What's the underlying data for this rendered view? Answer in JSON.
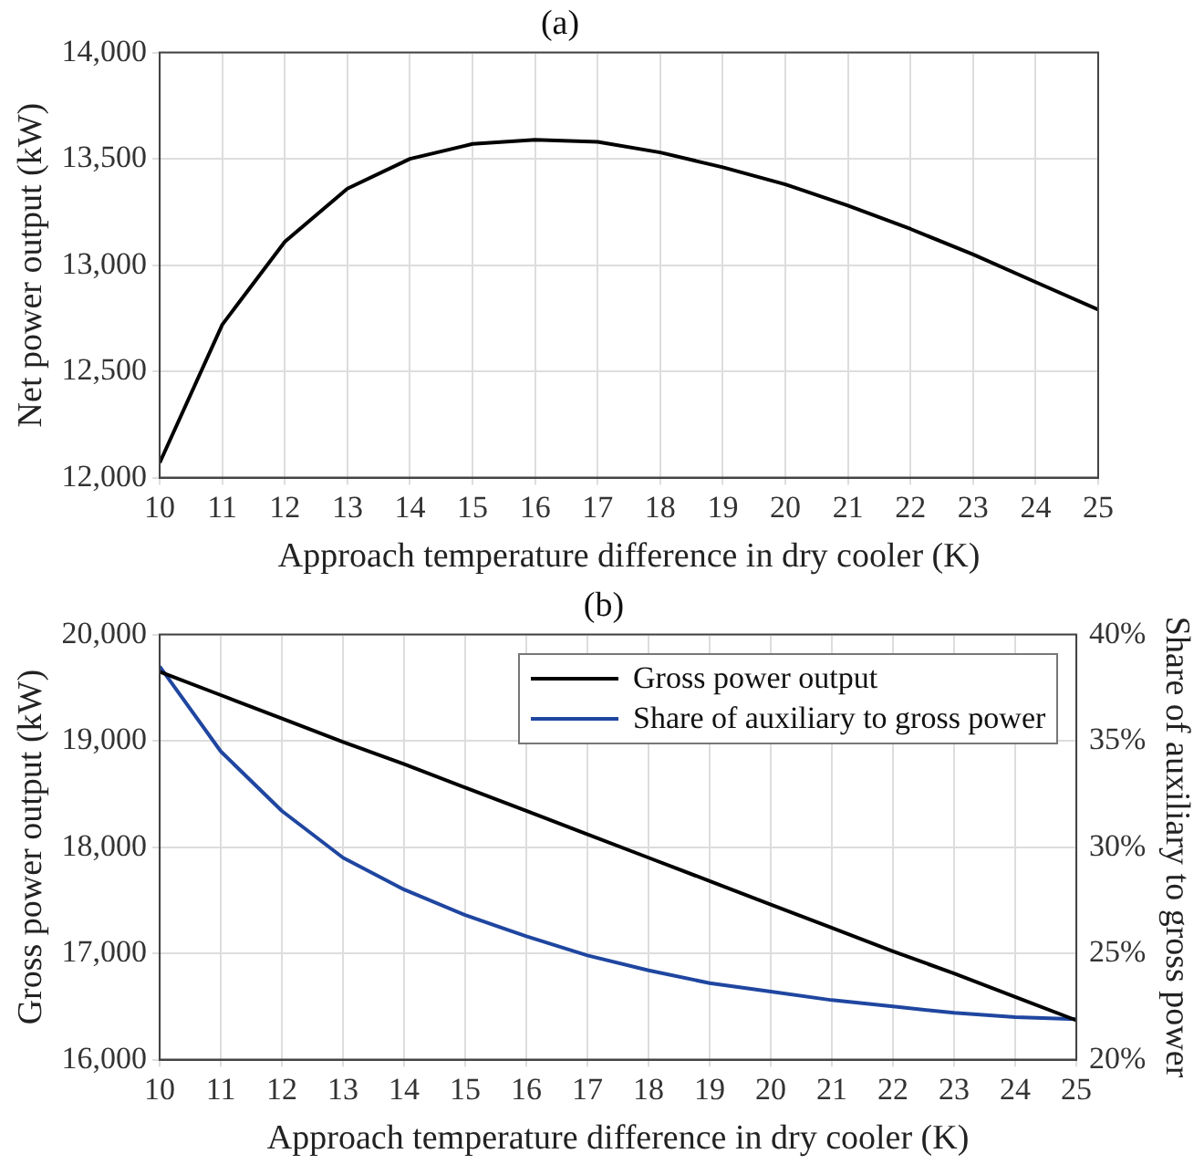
{
  "chart_data": [
    {
      "type": "line",
      "title": "(a)",
      "xlabel": "Approach temperature difference in dry cooler (K)",
      "ylabel": "Net power output (kW)",
      "x": [
        10,
        11,
        12,
        13,
        14,
        15,
        16,
        17,
        18,
        19,
        20,
        21,
        22,
        23,
        24,
        25
      ],
      "series": [
        {
          "color": "#000000",
          "values": [
            12070,
            12720,
            13110,
            13360,
            13500,
            13570,
            13590,
            13580,
            13530,
            13460,
            13380,
            13280,
            13170,
            13050,
            12920,
            12790
          ]
        }
      ],
      "xlim": [
        10,
        25
      ],
      "xticks": [
        10,
        11,
        12,
        13,
        14,
        15,
        16,
        17,
        18,
        19,
        20,
        21,
        22,
        23,
        24,
        25
      ],
      "ylim": [
        12000,
        14000
      ],
      "yticks": [
        {
          "value": 12000,
          "label": "12,000"
        },
        {
          "value": 12500,
          "label": "12,500"
        },
        {
          "value": 13000,
          "label": "13,000"
        },
        {
          "value": 13500,
          "label": "13,500"
        },
        {
          "value": 14000,
          "label": "14,000"
        }
      ],
      "grid": true,
      "legend": false,
      "marker": "none",
      "line_style": "solid"
    },
    {
      "type": "line",
      "title": "(b)",
      "xlabel": "Approach temperature difference in dry cooler (K)",
      "ylabel": "Gross power output (kW)",
      "y2label": "Share of auxiliary to gross power",
      "x": [
        10,
        11,
        12,
        13,
        14,
        15,
        16,
        17,
        18,
        19,
        20,
        21,
        22,
        23,
        24,
        25
      ],
      "series": [
        {
          "name": "Gross power output",
          "color": "#000000",
          "values": [
            19650,
            19430,
            19210,
            18990,
            18780,
            18560,
            18340,
            18120,
            17900,
            17680,
            17460,
            17240,
            17020,
            16810,
            16590,
            16370
          ]
        },
        {
          "name": "Share of auxiliary to gross power",
          "color": "#1f46a0",
          "axis": "y2",
          "values": [
            38.5,
            34.5,
            31.7,
            29.5,
            28.0,
            26.8,
            25.8,
            24.9,
            24.2,
            23.6,
            23.2,
            22.8,
            22.5,
            22.2,
            22.0,
            21.9
          ]
        }
      ],
      "xlim": [
        10,
        25
      ],
      "xticks": [
        10,
        11,
        12,
        13,
        14,
        15,
        16,
        17,
        18,
        19,
        20,
        21,
        22,
        23,
        24,
        25
      ],
      "ylim": [
        16000,
        20000
      ],
      "yticks": [
        {
          "value": 16000,
          "label": "16,000"
        },
        {
          "value": 17000,
          "label": "17,000"
        },
        {
          "value": 18000,
          "label": "18,000"
        },
        {
          "value": 19000,
          "label": "19,000"
        },
        {
          "value": 20000,
          "label": "20,000"
        }
      ],
      "y2lim": [
        20,
        40
      ],
      "y2ticks": [
        {
          "value": 20,
          "label": "20%"
        },
        {
          "value": 25,
          "label": "25%"
        },
        {
          "value": 30,
          "label": "30%"
        },
        {
          "value": 35,
          "label": "35%"
        },
        {
          "value": 40,
          "label": "40%"
        }
      ],
      "grid": true,
      "legend": "top right",
      "marker": "none",
      "line_style": "solid"
    }
  ]
}
